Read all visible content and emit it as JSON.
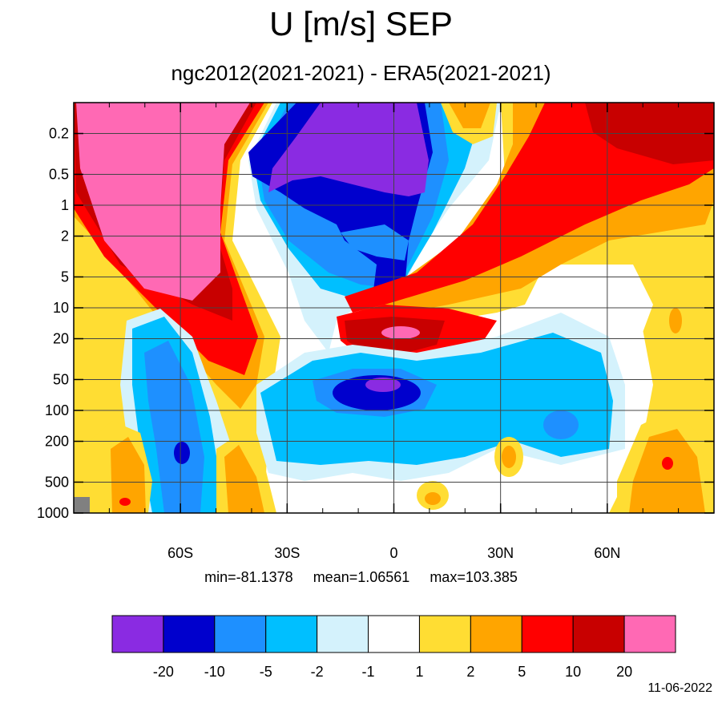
{
  "chart_data": {
    "type": "heatmap",
    "title": "U [m/s] SEP",
    "subtitle": "ngc2012(2021-2021) - ERA5(2021-2021)",
    "x_axis": {
      "range": [
        -90,
        90
      ],
      "ticks": [
        {
          "value": -60,
          "label": "60S"
        },
        {
          "value": -30,
          "label": "30S"
        },
        {
          "value": 0,
          "label": "0"
        },
        {
          "value": 30,
          "label": "30N"
        },
        {
          "value": 60,
          "label": "60N"
        }
      ]
    },
    "y_axis": {
      "scale": "log",
      "reversed": true,
      "range": [
        0.1,
        1000
      ],
      "ticks": [
        {
          "value": 0.2,
          "label": "0.2"
        },
        {
          "value": 0.5,
          "label": "0.5"
        },
        {
          "value": 1,
          "label": "1"
        },
        {
          "value": 2,
          "label": "2"
        },
        {
          "value": 5,
          "label": "5"
        },
        {
          "value": 10,
          "label": "10"
        },
        {
          "value": 20,
          "label": "20"
        },
        {
          "value": 50,
          "label": "50"
        },
        {
          "value": 100,
          "label": "100"
        },
        {
          "value": 200,
          "label": "200"
        },
        {
          "value": 500,
          "label": "500"
        },
        {
          "value": 1000,
          "label": "1000"
        }
      ]
    },
    "grid": true,
    "stats": {
      "min": "min=-81.1378",
      "mean": "mean=1.06561",
      "max": "max=103.385"
    },
    "colorbar": {
      "placement": "bottom",
      "levels": [
        "-20",
        "-10",
        "-5",
        "-2",
        "-1",
        "1",
        "2",
        "5",
        "10",
        "20"
      ],
      "colors": [
        "#8a2be2",
        "#0000cd",
        "#1e90ff",
        "#00bfff",
        "#d4f2fc",
        "#ffffff",
        "#ffdd33",
        "#ffa500",
        "#ff0000",
        "#c80000",
        "#ff69b4"
      ]
    },
    "regions": [
      {
        "lat": -74,
        "p": 0.3,
        "value": 25
      },
      {
        "lat": -64,
        "p": 2,
        "value": 25
      },
      {
        "lat": -6,
        "p": 0.5,
        "value": -25
      },
      {
        "lat": -3,
        "p": 1,
        "value": -15
      },
      {
        "lat": 4,
        "p": 20,
        "value": 15
      },
      {
        "lat": 72,
        "p": 0.2,
        "value": 15
      },
      {
        "lat": 45,
        "p": 5,
        "value": 8
      },
      {
        "lat": -60,
        "p": 80,
        "value": -4
      },
      {
        "lat": 4,
        "p": 80,
        "value": -15
      },
      {
        "lat": 40,
        "p": 100,
        "value": -3
      },
      {
        "lat": 78,
        "p": 200,
        "value": 3
      },
      {
        "lat": -78,
        "p": 400,
        "value": 3
      }
    ]
  },
  "footer": {
    "date": "11-06-2022"
  }
}
